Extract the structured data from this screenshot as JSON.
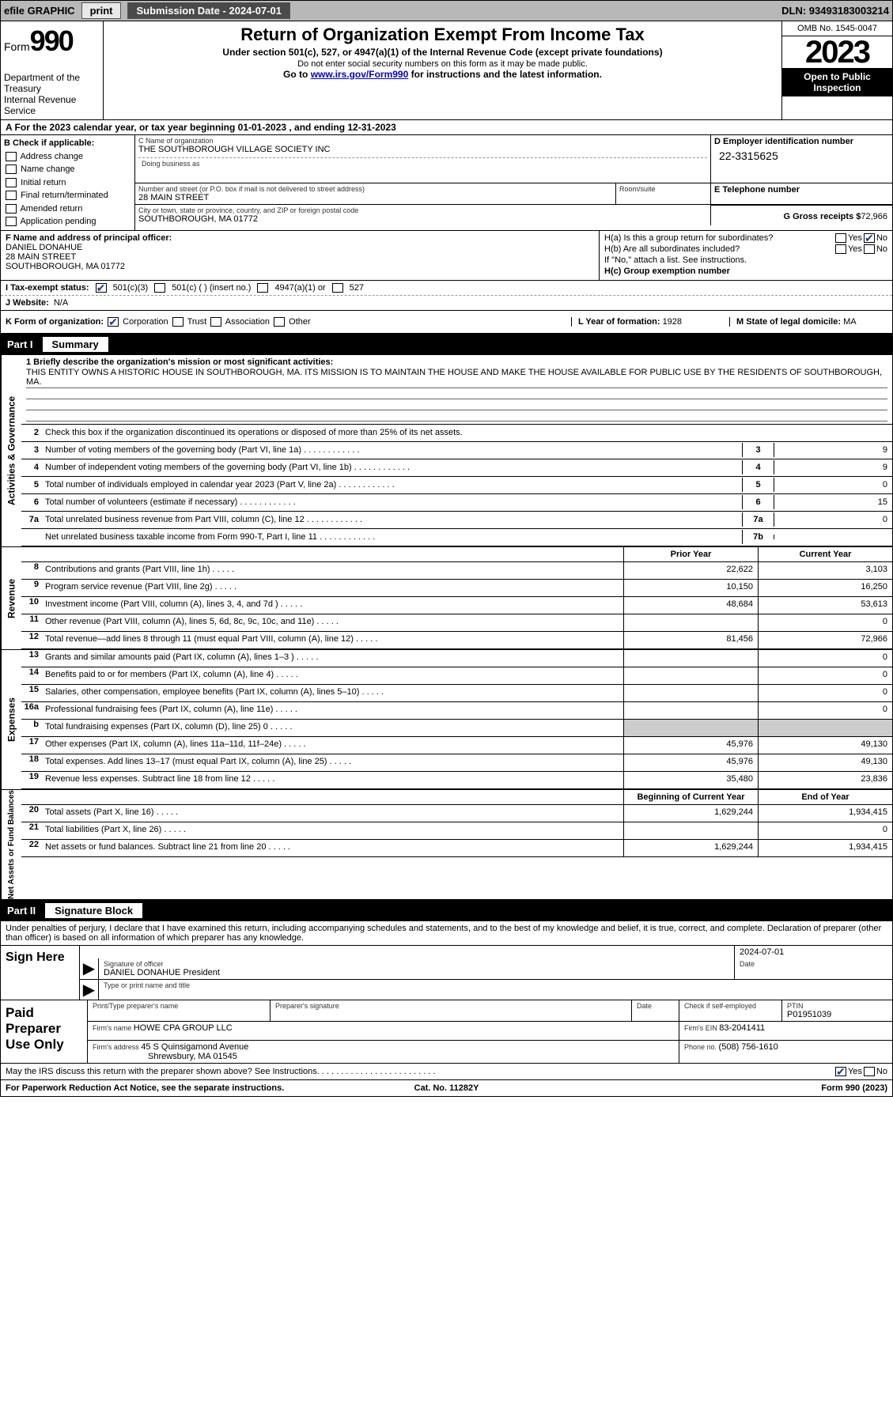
{
  "topbar": {
    "efile_label": "efile GRAPHIC",
    "print_btn": "print",
    "submission_label": "Submission Date - 2024-07-01",
    "dln_label": "DLN: 93493183003214"
  },
  "header": {
    "form_word": "Form",
    "form_number": "990",
    "dept": "Department of the Treasury",
    "irs": "Internal Revenue Service",
    "title": "Return of Organization Exempt From Income Tax",
    "sub1": "Under section 501(c), 527, or 4947(a)(1) of the Internal Revenue Code (except private foundations)",
    "sub2": "Do not enter social security numbers on this form as it may be made public.",
    "sub3_pre": "Go to ",
    "sub3_link": "www.irs.gov/Form990",
    "sub3_post": " for instructions and the latest information.",
    "omb": "OMB No. 1545-0047",
    "year": "2023",
    "open": "Open to Public Inspection"
  },
  "row_a": {
    "text": "A  For the 2023 calendar year, or tax year beginning 01-01-2023    , and ending 12-31-2023"
  },
  "col_b": {
    "title": "B Check if applicable:",
    "opts": [
      "Address change",
      "Name change",
      "Initial return",
      "Final return/terminated",
      "Amended return",
      "Application pending"
    ]
  },
  "box_c": {
    "label": "C Name of organization",
    "value": "THE SOUTHBOROUGH VILLAGE SOCIETY INC",
    "dba_label": "Doing business as",
    "addr_label": "Number and street (or P.O. box if mail is not delivered to street address)",
    "addr_value": "28 MAIN STREET",
    "suite_label": "Room/suite",
    "city_label": "City or town, state or province, country, and ZIP or foreign postal code",
    "city_value": "SOUTHBOROUGH, MA  01772"
  },
  "box_d": {
    "label": "D Employer identification number",
    "value": "22-3315625"
  },
  "box_e": {
    "label": "E Telephone number"
  },
  "box_g": {
    "label": "G Gross receipts $",
    "value": "72,966"
  },
  "box_f": {
    "label": "F  Name and address of principal officer:",
    "name": "DANIEL DONAHUE",
    "addr1": "28 MAIN STREET",
    "addr2": "SOUTHBOROUGH, MA  01772"
  },
  "box_h": {
    "a_label": "H(a)  Is this a group return for subordinates?",
    "b_label": "H(b)  Are all subordinates included?",
    "b_note": "If \"No,\" attach a list. See instructions.",
    "c_label": "H(c)  Group exemption number ",
    "yes": "Yes",
    "no": "No"
  },
  "row_i": {
    "label": "I   Tax-exempt status:",
    "o1": "501(c)(3)",
    "o2": "501(c) (  ) (insert no.)",
    "o3": "4947(a)(1) or",
    "o4": "527"
  },
  "row_j": {
    "label": "J   Website: ",
    "value": "N/A"
  },
  "row_k": {
    "label": "K Form of organization:",
    "o1": "Corporation",
    "o2": "Trust",
    "o3": "Association",
    "o4": "Other"
  },
  "row_l": {
    "label": "L Year of formation: ",
    "value": "1928"
  },
  "row_m": {
    "label": "M State of legal domicile: ",
    "value": "MA"
  },
  "part1": {
    "num": "Part I",
    "title": "Summary",
    "vtab_ag": "Activities & Governance",
    "vtab_rev": "Revenue",
    "vtab_exp": "Expenses",
    "vtab_na": "Net Assets or Fund Balances",
    "line1_label": "1   Briefly describe the organization's mission or most significant activities:",
    "line1_text": "THIS ENTITY OWNS A HISTORIC HOUSE IN SOUTHBOROUGH, MA. ITS MISSION IS TO MAINTAIN THE HOUSE AND MAKE THE HOUSE AVAILABLE FOR PUBLIC USE BY THE RESIDENTS OF SOUTHBOROUGH, MA.",
    "line2": "Check this box      if the organization discontinued its operations or disposed of more than 25% of its net assets.",
    "lines_ag": [
      {
        "n": "3",
        "t": "Number of voting members of the governing body (Part VI, line 1a)",
        "c": "3",
        "v": "9"
      },
      {
        "n": "4",
        "t": "Number of independent voting members of the governing body (Part VI, line 1b)",
        "c": "4",
        "v": "9"
      },
      {
        "n": "5",
        "t": "Total number of individuals employed in calendar year 2023 (Part V, line 2a)",
        "c": "5",
        "v": "0"
      },
      {
        "n": "6",
        "t": "Total number of volunteers (estimate if necessary)",
        "c": "6",
        "v": "15"
      },
      {
        "n": "7a",
        "t": "Total unrelated business revenue from Part VIII, column (C), line 12",
        "c": "7a",
        "v": "0"
      },
      {
        "n": "",
        "t": "Net unrelated business taxable income from Form 990-T, Part I, line 11",
        "c": "7b",
        "v": ""
      }
    ],
    "th_prior": "Prior Year",
    "th_curr": "Current Year",
    "rev": [
      {
        "n": "8",
        "t": "Contributions and grants (Part VIII, line 1h)",
        "p": "22,622",
        "c": "3,103"
      },
      {
        "n": "9",
        "t": "Program service revenue (Part VIII, line 2g)",
        "p": "10,150",
        "c": "16,250"
      },
      {
        "n": "10",
        "t": "Investment income (Part VIII, column (A), lines 3, 4, and 7d )",
        "p": "48,684",
        "c": "53,613"
      },
      {
        "n": "11",
        "t": "Other revenue (Part VIII, column (A), lines 5, 6d, 8c, 9c, 10c, and 11e)",
        "p": "",
        "c": "0"
      },
      {
        "n": "12",
        "t": "Total revenue—add lines 8 through 11 (must equal Part VIII, column (A), line 12)",
        "p": "81,456",
        "c": "72,966"
      }
    ],
    "exp": [
      {
        "n": "13",
        "t": "Grants and similar amounts paid (Part IX, column (A), lines 1–3 )",
        "p": "",
        "c": "0"
      },
      {
        "n": "14",
        "t": "Benefits paid to or for members (Part IX, column (A), line 4)",
        "p": "",
        "c": "0"
      },
      {
        "n": "15",
        "t": "Salaries, other compensation, employee benefits (Part IX, column (A), lines 5–10)",
        "p": "",
        "c": "0"
      },
      {
        "n": "16a",
        "t": "Professional fundraising fees (Part IX, column (A), line 11e)",
        "p": "",
        "c": "0"
      },
      {
        "n": "b",
        "t": "Total fundraising expenses (Part IX, column (D), line 25) 0",
        "p": "SHADE",
        "c": "SHADE"
      },
      {
        "n": "17",
        "t": "Other expenses (Part IX, column (A), lines 11a–11d, 11f–24e)",
        "p": "45,976",
        "c": "49,130"
      },
      {
        "n": "18",
        "t": "Total expenses. Add lines 13–17 (must equal Part IX, column (A), line 25)",
        "p": "45,976",
        "c": "49,130"
      },
      {
        "n": "19",
        "t": "Revenue less expenses. Subtract line 18 from line 12",
        "p": "35,480",
        "c": "23,836"
      }
    ],
    "th_begin": "Beginning of Current Year",
    "th_end": "End of Year",
    "na": [
      {
        "n": "20",
        "t": "Total assets (Part X, line 16)",
        "p": "1,629,244",
        "c": "1,934,415"
      },
      {
        "n": "21",
        "t": "Total liabilities (Part X, line 26)",
        "p": "",
        "c": "0"
      },
      {
        "n": "22",
        "t": "Net assets or fund balances. Subtract line 21 from line 20",
        "p": "1,629,244",
        "c": "1,934,415"
      }
    ]
  },
  "part2": {
    "num": "Part II",
    "title": "Signature Block",
    "penalties": "Under penalties of perjury, I declare that I have examined this return, including accompanying schedules and statements, and to the best of my knowledge and belief, it is true, correct, and complete. Declaration of preparer (other than officer) is based on all information of which preparer has any knowledge."
  },
  "sign": {
    "here": "Sign Here",
    "sig_label": "Signature of officer",
    "date_label": "Date",
    "date_value": "2024-07-01",
    "officer": "DANIEL DONAHUE  President",
    "type_label": "Type or print name and title"
  },
  "paid": {
    "title": "Paid Preparer Use Only",
    "print_label": "Print/Type preparer's name",
    "sig_label": "Preparer's signature",
    "date_label": "Date",
    "check_label": "Check       if self-employed",
    "ptin_label": "PTIN",
    "ptin_value": "P01951039",
    "firm_name_label": "Firm's name   ",
    "firm_name": "HOWE CPA GROUP LLC",
    "firm_ein_label": "Firm's EIN  ",
    "firm_ein": "83-2041411",
    "firm_addr_label": "Firm's address ",
    "firm_addr1": "45 S Quinsigamond Avenue",
    "firm_addr2": "Shrewsbury, MA  01545",
    "phone_label": "Phone no. ",
    "phone": "(508) 756-1610"
  },
  "discuss": {
    "text": "May the IRS discuss this return with the preparer shown above? See Instructions.  . . . . . . . . . . . . . . . . . . . . . . . .",
    "yes": "Yes",
    "no": "No"
  },
  "footer": {
    "left": "For Paperwork Reduction Act Notice, see the separate instructions.",
    "center": "Cat. No. 11282Y",
    "right": "Form 990 (2023)"
  }
}
